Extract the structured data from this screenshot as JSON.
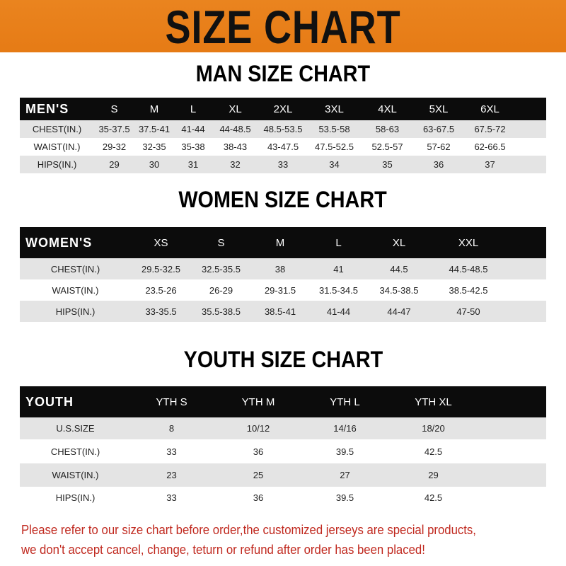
{
  "title": "SIZE CHART",
  "men": {
    "heading": "MAN SIZE CHART",
    "header": [
      "MEN'S",
      "S",
      "M",
      "L",
      "XL",
      "2XL",
      "3XL",
      "4XL",
      "5XL",
      "6XL"
    ],
    "rows": [
      [
        "CHEST(IN.)",
        "35-37.5",
        "37.5-41",
        "41-44",
        "44-48.5",
        "48.5-53.5",
        "53.5-58",
        "58-63",
        "63-67.5",
        "67.5-72"
      ],
      [
        "WAIST(IN.)",
        "29-32",
        "32-35",
        "35-38",
        "38-43",
        "43-47.5",
        "47.5-52.5",
        "52.5-57",
        "57-62",
        "62-66.5"
      ],
      [
        "HIPS(IN.)",
        "29",
        "30",
        "31",
        "32",
        "33",
        "34",
        "35",
        "36",
        "37"
      ]
    ]
  },
  "women": {
    "heading": "WOMEN SIZE CHART",
    "header": [
      "WOMEN'S",
      "XS",
      "S",
      "M",
      "L",
      "XL",
      "XXL"
    ],
    "rows": [
      [
        "CHEST(IN.)",
        "29.5-32.5",
        "32.5-35.5",
        "38",
        "41",
        "44.5",
        "44.5-48.5"
      ],
      [
        "WAIST(IN.)",
        "23.5-26",
        "26-29",
        "29-31.5",
        "31.5-34.5",
        "34.5-38.5",
        "38.5-42.5"
      ],
      [
        "HIPS(IN.)",
        "33-35.5",
        "35.5-38.5",
        "38.5-41",
        "41-44",
        "44-47",
        "47-50"
      ]
    ]
  },
  "youth": {
    "heading": "YOUTH SIZE CHART",
    "header": [
      "YOUTH",
      "YTH S",
      "YTH M",
      "YTH L",
      "YTH XL"
    ],
    "rows": [
      [
        "U.S.SIZE",
        "8",
        "10/12",
        "14/16",
        "18/20"
      ],
      [
        "CHEST(IN.)",
        "33",
        "36",
        "39.5",
        "42.5"
      ],
      [
        "WAIST(IN.)",
        "23",
        "25",
        "27",
        "29"
      ],
      [
        "HIPS(IN.)",
        "33",
        "36",
        "39.5",
        "42.5"
      ]
    ]
  },
  "note": {
    "line1": "Please refer to our size chart before order,the customized jerseys are special products,",
    "line2": "we don't accept cancel, change, teturn or refund after order has been placed!"
  },
  "colors": {
    "banner": "#e8801c",
    "header_row": "#0c0c0c",
    "note": "#c0281e"
  }
}
